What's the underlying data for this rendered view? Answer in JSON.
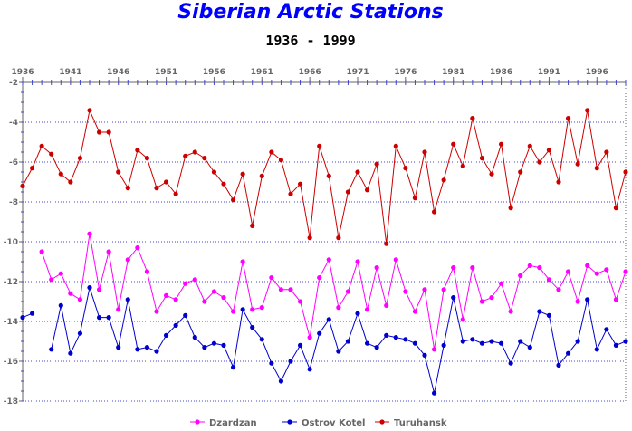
{
  "chart_data": {
    "type": "line",
    "title": "Siberian Arctic Stations",
    "subtitle": "1936 - 1999",
    "xlim": [
      1936,
      1999
    ],
    "ylim": [
      -18,
      -2
    ],
    "x_ticks": [
      1936,
      1941,
      1946,
      1951,
      1956,
      1961,
      1966,
      1971,
      1976,
      1981,
      1986,
      1991,
      1996
    ],
    "y_ticks": [
      -2,
      -4,
      -6,
      -8,
      -10,
      -12,
      -14,
      -16,
      -18
    ],
    "grid": "horizontal dotted",
    "legend_position": "bottom",
    "x": [
      1936,
      1937,
      1938,
      1939,
      1940,
      1941,
      1942,
      1943,
      1944,
      1945,
      1946,
      1947,
      1948,
      1949,
      1950,
      1951,
      1952,
      1953,
      1954,
      1955,
      1956,
      1957,
      1958,
      1959,
      1960,
      1961,
      1962,
      1963,
      1964,
      1965,
      1966,
      1967,
      1968,
      1969,
      1970,
      1971,
      1972,
      1973,
      1974,
      1975,
      1976,
      1977,
      1978,
      1979,
      1980,
      1981,
      1982,
      1983,
      1984,
      1985,
      1986,
      1987,
      1988,
      1989,
      1990,
      1991,
      1992,
      1993,
      1994,
      1995,
      1996,
      1997,
      1998,
      1999
    ],
    "series": [
      {
        "name": "Dzardzan",
        "color": "#ff00ff",
        "values": [
          null,
          null,
          -10.5,
          -11.9,
          -11.6,
          -12.6,
          -12.9,
          -9.6,
          -12.4,
          -10.5,
          -13.4,
          -10.9,
          -10.3,
          -11.5,
          -13.5,
          -12.7,
          -12.9,
          -12.1,
          -11.9,
          -13.0,
          -12.5,
          -12.8,
          -13.5,
          -11.0,
          -13.4,
          -13.3,
          -11.8,
          -12.4,
          -12.4,
          -13.0,
          -14.8,
          -11.8,
          -10.9,
          -13.3,
          -12.5,
          -11.0,
          -13.4,
          -11.3,
          -13.2,
          -10.9,
          -12.5,
          -13.5,
          -12.4,
          -15.4,
          -12.4,
          -11.3,
          -13.9,
          -11.3,
          -13.0,
          -12.8,
          -12.1,
          -13.5,
          -11.7,
          -11.2,
          -11.3,
          -11.9,
          -12.4,
          -11.5,
          -13.0,
          -11.2,
          -11.6,
          -11.4,
          -12.9,
          -11.5
        ]
      },
      {
        "name": "Ostrov Kotel",
        "color": "#0000cc",
        "values": [
          -13.8,
          -13.6,
          null,
          -15.4,
          -13.2,
          -15.6,
          -14.6,
          -12.3,
          -13.8,
          -13.8,
          -15.3,
          -12.9,
          -15.4,
          -15.3,
          -15.5,
          -14.7,
          -14.2,
          -13.7,
          -14.8,
          -15.3,
          -15.1,
          -15.2,
          -16.3,
          -13.4,
          -14.3,
          -14.9,
          -16.1,
          -17.0,
          -16.0,
          -15.2,
          -16.4,
          -14.6,
          -13.9,
          -15.5,
          -15.0,
          -13.6,
          -15.1,
          -15.3,
          -14.7,
          -14.8,
          -14.9,
          -15.1,
          -15.7,
          -17.6,
          -15.2,
          -12.8,
          -15.0,
          -14.9,
          -15.1,
          -15.0,
          -15.1,
          -16.1,
          -15.0,
          -15.3,
          -13.5,
          -13.7,
          -16.2,
          -15.6,
          -15.0,
          -12.9,
          -15.4,
          -14.4,
          -15.2,
          -15.0
        ]
      },
      {
        "name": "Turuhansk",
        "color": "#cc0000",
        "values": [
          -7.2,
          -6.3,
          -5.2,
          -5.6,
          -6.6,
          -7.0,
          -5.8,
          -3.4,
          -4.5,
          -4.5,
          -6.5,
          -7.3,
          -5.4,
          -5.8,
          -7.3,
          -7.0,
          -7.6,
          -5.7,
          -5.5,
          -5.8,
          -6.5,
          -7.1,
          -7.9,
          -6.6,
          -9.2,
          -6.7,
          -5.5,
          -5.9,
          -7.6,
          -7.1,
          -9.8,
          -5.2,
          -6.7,
          -9.8,
          -7.5,
          -6.5,
          -7.4,
          -6.1,
          -10.1,
          -5.2,
          -6.3,
          -7.8,
          -5.5,
          -8.5,
          -6.9,
          -5.1,
          -6.2,
          -3.8,
          -5.8,
          -6.6,
          -5.1,
          -8.3,
          -6.5,
          -5.2,
          -6.0,
          -5.4,
          -7.0,
          -3.8,
          -6.1,
          -3.4,
          -6.3,
          -5.5,
          -8.3,
          -6.5
        ]
      }
    ]
  }
}
